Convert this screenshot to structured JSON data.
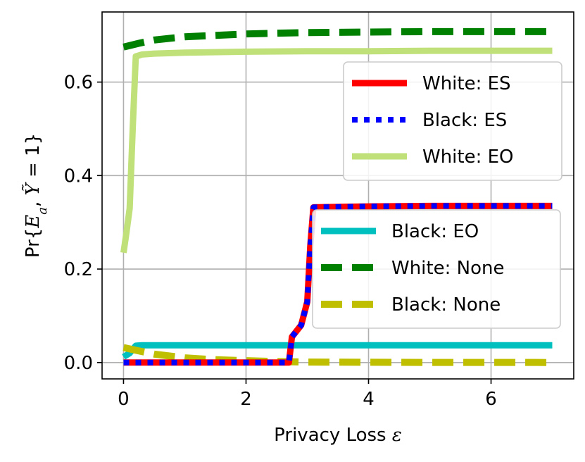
{
  "chart_data": {
    "type": "line",
    "title": "",
    "xlabel": "Privacy Loss ε",
    "xlabel_text": "Privacy Loss ",
    "xlabel_symbol": "ε",
    "ylabel_parts": [
      "Pr{",
      "E",
      "a",
      ", ",
      "Ỹ",
      " = 1}"
    ],
    "xlim": [
      -0.35,
      7.35
    ],
    "ylim": [
      -0.035,
      0.75
    ],
    "xticks": [
      0,
      2,
      4,
      6
    ],
    "yticks": [
      0.0,
      0.2,
      0.4,
      0.6
    ],
    "grid": true,
    "legends": [
      {
        "placement": "upper-right",
        "entries": [
          "White: ES",
          "Black: ES",
          "White: EO"
        ]
      },
      {
        "placement": "lower-right",
        "entries": [
          "Black: EO",
          "White: None",
          "Black: None"
        ]
      }
    ],
    "series": [
      {
        "name": "White: ES",
        "color": "#ff0000",
        "style": "solid",
        "x": [
          0,
          0.5,
          1,
          2,
          2.7,
          2.75,
          2.9,
          3.0,
          3.05,
          3.1,
          4,
          5,
          6,
          7
        ],
        "y": [
          0,
          0,
          0,
          0,
          0,
          0.055,
          0.08,
          0.13,
          0.25,
          0.332,
          0.334,
          0.335,
          0.335,
          0.335
        ]
      },
      {
        "name": "Black: ES",
        "color": "#0000ff",
        "style": "dotted",
        "x": [
          0,
          0.5,
          1,
          2,
          2.7,
          2.75,
          2.9,
          3.0,
          3.05,
          3.1,
          4,
          5,
          6,
          7
        ],
        "y": [
          0,
          0,
          0,
          0,
          0,
          0.055,
          0.08,
          0.13,
          0.25,
          0.332,
          0.334,
          0.335,
          0.335,
          0.335
        ]
      },
      {
        "name": "White: EO",
        "color": "#c0e07a",
        "style": "solid",
        "x": [
          0,
          0.05,
          0.1,
          0.15,
          0.2,
          0.3,
          0.5,
          1,
          2,
          3,
          4,
          5,
          6,
          7
        ],
        "y": [
          0.235,
          0.28,
          0.33,
          0.5,
          0.655,
          0.659,
          0.661,
          0.663,
          0.665,
          0.666,
          0.666,
          0.667,
          0.667,
          0.667
        ]
      },
      {
        "name": "Black: EO",
        "color": "#00bfbf",
        "style": "solid",
        "x": [
          0,
          0.1,
          0.2,
          0.3,
          1,
          2,
          3,
          4,
          5,
          6,
          7
        ],
        "y": [
          0.012,
          0.02,
          0.036,
          0.037,
          0.037,
          0.037,
          0.037,
          0.037,
          0.037,
          0.037,
          0.037
        ]
      },
      {
        "name": "White: None",
        "color": "#008000",
        "style": "dashed",
        "x": [
          0,
          0.25,
          0.5,
          1,
          2,
          3,
          4,
          5,
          6,
          7
        ],
        "y": [
          0.675,
          0.683,
          0.69,
          0.697,
          0.703,
          0.706,
          0.707,
          0.708,
          0.708,
          0.708
        ]
      },
      {
        "name": "Black: None",
        "color": "#bfbf00",
        "style": "dashed",
        "x": [
          0,
          0.25,
          0.5,
          1,
          1.5,
          2,
          2.5,
          3,
          4,
          5,
          6,
          7
        ],
        "y": [
          0.032,
          0.025,
          0.018,
          0.01,
          0.006,
          0.004,
          0.002,
          0.001,
          0.0005,
          0.0003,
          0.0002,
          0.0001
        ]
      }
    ]
  }
}
